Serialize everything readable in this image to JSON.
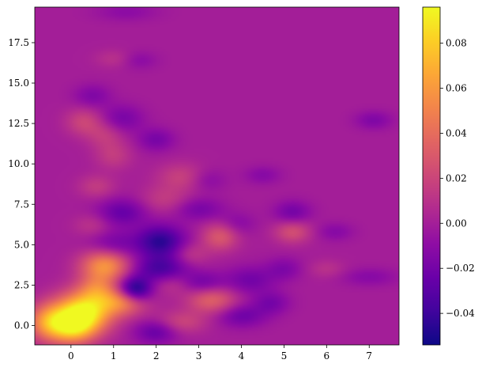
{
  "chart_data": {
    "type": "heatmap",
    "title": "",
    "xlabel": "",
    "ylabel": "",
    "xlim": [
      -0.85,
      7.7
    ],
    "ylim": [
      -1.2,
      19.7
    ],
    "x_ticks": [
      0,
      1,
      2,
      3,
      4,
      5,
      6,
      7
    ],
    "x_tick_labels": [
      "0",
      "1",
      "2",
      "3",
      "4",
      "5",
      "6",
      "7"
    ],
    "y_ticks": [
      0.0,
      2.5,
      5.0,
      7.5,
      10.0,
      12.5,
      15.0,
      17.5
    ],
    "y_tick_labels": [
      "0.0",
      "2.5",
      "5.0",
      "7.5",
      "10.0",
      "12.5",
      "15.0",
      "17.5"
    ],
    "colormap": "plasma",
    "background_value": 0.0,
    "colorbar": {
      "vmin": -0.054,
      "vmax": 0.096,
      "ticks": [
        -0.04,
        -0.02,
        0.0,
        0.02,
        0.04,
        0.06,
        0.08
      ],
      "tick_labels": [
        "−0.04",
        "−0.02",
        "0.00",
        "0.02",
        "0.04",
        "0.06",
        "0.08"
      ]
    },
    "blobs": [
      {
        "x": 0.3,
        "y": 0.8,
        "value": 0.095,
        "sx": 0.45,
        "sy": 0.9
      },
      {
        "x": -0.5,
        "y": 0.2,
        "value": 0.06,
        "sx": 0.35,
        "sy": 0.8
      },
      {
        "x": 0.05,
        "y": -0.2,
        "value": 0.05,
        "sx": 0.35,
        "sy": 0.7
      },
      {
        "x": 0.8,
        "y": 3.7,
        "value": 0.058,
        "sx": 0.4,
        "sy": 0.7
      },
      {
        "x": 1.2,
        "y": 1.5,
        "value": 0.05,
        "sx": 0.4,
        "sy": 0.6
      },
      {
        "x": 0.6,
        "y": 2.3,
        "value": 0.03,
        "sx": 0.3,
        "sy": 0.6
      },
      {
        "x": 1.5,
        "y": 2.2,
        "value": -0.058,
        "sx": 0.28,
        "sy": 0.55
      },
      {
        "x": 2.1,
        "y": 5.2,
        "value": -0.045,
        "sx": 0.4,
        "sy": 0.7
      },
      {
        "x": 2.1,
        "y": 3.5,
        "value": -0.035,
        "sx": 0.45,
        "sy": 0.6
      },
      {
        "x": 1.0,
        "y": 5.0,
        "value": -0.02,
        "sx": 0.4,
        "sy": 0.6
      },
      {
        "x": 3.3,
        "y": 1.6,
        "value": 0.035,
        "sx": 0.4,
        "sy": 0.6
      },
      {
        "x": 2.5,
        "y": 2.6,
        "value": 0.02,
        "sx": 0.4,
        "sy": 0.5
      },
      {
        "x": 3.5,
        "y": 5.5,
        "value": 0.03,
        "sx": 0.3,
        "sy": 0.6
      },
      {
        "x": 3.0,
        "y": 2.6,
        "value": -0.028,
        "sx": 0.4,
        "sy": 0.5
      },
      {
        "x": 4.0,
        "y": 0.6,
        "value": -0.022,
        "sx": 0.4,
        "sy": 0.5
      },
      {
        "x": 2.6,
        "y": 0.2,
        "value": 0.02,
        "sx": 0.4,
        "sy": 0.5
      },
      {
        "x": 2.0,
        "y": -0.4,
        "value": -0.025,
        "sx": 0.35,
        "sy": 0.5
      },
      {
        "x": 4.2,
        "y": 2.8,
        "value": -0.02,
        "sx": 0.4,
        "sy": 0.6
      },
      {
        "x": 5.2,
        "y": 5.8,
        "value": 0.025,
        "sx": 0.3,
        "sy": 0.5
      },
      {
        "x": 5.2,
        "y": 7.0,
        "value": -0.02,
        "sx": 0.3,
        "sy": 0.5
      },
      {
        "x": 4.7,
        "y": 1.4,
        "value": -0.018,
        "sx": 0.3,
        "sy": 0.5
      },
      {
        "x": 5.0,
        "y": 3.5,
        "value": -0.015,
        "sx": 0.3,
        "sy": 0.5
      },
      {
        "x": 6.2,
        "y": 5.8,
        "value": -0.012,
        "sx": 0.3,
        "sy": 0.4
      },
      {
        "x": 7.0,
        "y": 3.0,
        "value": -0.012,
        "sx": 0.45,
        "sy": 0.4
      },
      {
        "x": 6.0,
        "y": 3.5,
        "value": 0.01,
        "sx": 0.3,
        "sy": 0.4
      },
      {
        "x": 7.1,
        "y": 12.7,
        "value": -0.015,
        "sx": 0.3,
        "sy": 0.4
      },
      {
        "x": 0.3,
        "y": 12.6,
        "value": 0.02,
        "sx": 0.3,
        "sy": 0.6
      },
      {
        "x": 0.8,
        "y": 11.8,
        "value": 0.015,
        "sx": 0.3,
        "sy": 0.6
      },
      {
        "x": 1.0,
        "y": 10.5,
        "value": 0.015,
        "sx": 0.3,
        "sy": 0.6
      },
      {
        "x": 1.2,
        "y": 12.8,
        "value": -0.018,
        "sx": 0.35,
        "sy": 0.6
      },
      {
        "x": 2.0,
        "y": 11.5,
        "value": -0.018,
        "sx": 0.3,
        "sy": 0.5
      },
      {
        "x": 0.5,
        "y": 14.2,
        "value": -0.015,
        "sx": 0.3,
        "sy": 0.5
      },
      {
        "x": 1.0,
        "y": 16.5,
        "value": 0.01,
        "sx": 0.3,
        "sy": 0.4
      },
      {
        "x": 1.6,
        "y": 16.4,
        "value": -0.01,
        "sx": 0.3,
        "sy": 0.4
      },
      {
        "x": 1.3,
        "y": 19.4,
        "value": -0.01,
        "sx": 0.5,
        "sy": 0.4
      },
      {
        "x": 1.2,
        "y": 7.0,
        "value": -0.025,
        "sx": 0.4,
        "sy": 0.6
      },
      {
        "x": 2.6,
        "y": 9.2,
        "value": 0.018,
        "sx": 0.4,
        "sy": 0.6
      },
      {
        "x": 2.2,
        "y": 7.8,
        "value": 0.015,
        "sx": 0.4,
        "sy": 0.6
      },
      {
        "x": 0.6,
        "y": 8.6,
        "value": 0.015,
        "sx": 0.3,
        "sy": 0.5
      },
      {
        "x": 3.0,
        "y": 7.2,
        "value": -0.018,
        "sx": 0.4,
        "sy": 0.5
      },
      {
        "x": 3.2,
        "y": 9.0,
        "value": -0.012,
        "sx": 0.3,
        "sy": 0.5
      },
      {
        "x": 4.5,
        "y": 9.3,
        "value": -0.012,
        "sx": 0.3,
        "sy": 0.4
      },
      {
        "x": 3.9,
        "y": 6.3,
        "value": -0.012,
        "sx": 0.3,
        "sy": 0.5
      },
      {
        "x": 2.8,
        "y": 4.4,
        "value": 0.015,
        "sx": 0.3,
        "sy": 0.5
      },
      {
        "x": 0.5,
        "y": 6.2,
        "value": 0.012,
        "sx": 0.3,
        "sy": 0.5
      }
    ]
  }
}
